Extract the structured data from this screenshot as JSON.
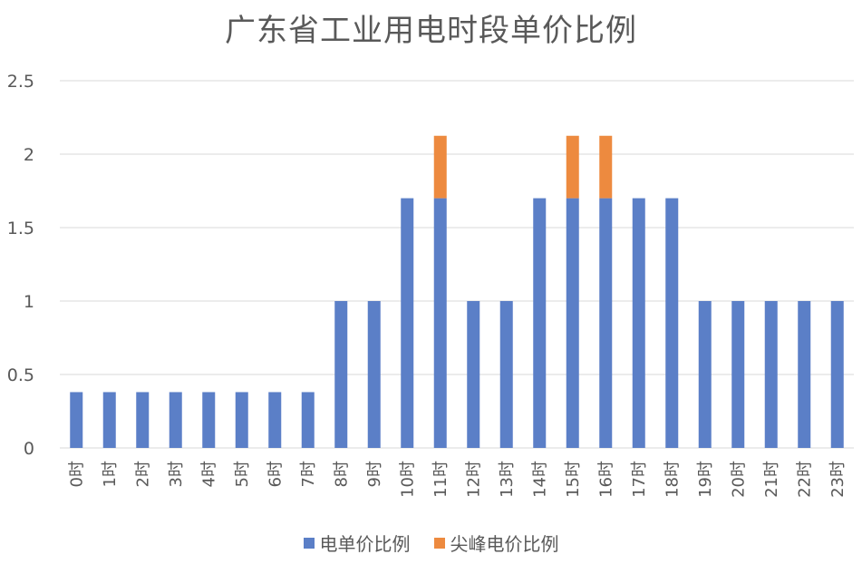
{
  "colors": {
    "series_0": "#5b7fc7",
    "series_1": "#ed8a3f",
    "grid": "#d9d9d9",
    "text": "#595959"
  },
  "chart_data": {
    "type": "bar",
    "stacked": true,
    "title": "广东省工业用电时段单价比例",
    "xlabel": "",
    "ylabel": "",
    "ylim": [
      0,
      2.5
    ],
    "yticks": [
      "0",
      "0.5",
      "1",
      "1.5",
      "2",
      "2.5"
    ],
    "grid": true,
    "legend_position": "bottom",
    "categories": [
      "0时",
      "1时",
      "2时",
      "3时",
      "4时",
      "5时",
      "6时",
      "7时",
      "8时",
      "9时",
      "10时",
      "11时",
      "12时",
      "13时",
      "14时",
      "15时",
      "16时",
      "17时",
      "18时",
      "19时",
      "20时",
      "21时",
      "22时",
      "23时"
    ],
    "series": [
      {
        "name": "电单价比例",
        "values": [
          0.38,
          0.38,
          0.38,
          0.38,
          0.38,
          0.38,
          0.38,
          0.38,
          1,
          1,
          1.7,
          1.7,
          1,
          1,
          1.7,
          1.7,
          1.7,
          1.7,
          1.7,
          1,
          1,
          1,
          1,
          1
        ]
      },
      {
        "name": "尖峰电价比例",
        "values": [
          0,
          0,
          0,
          0,
          0,
          0,
          0,
          0,
          0,
          0,
          0,
          0.425,
          0,
          0,
          0,
          0.425,
          0.425,
          0,
          0,
          0,
          0,
          0,
          0,
          0
        ]
      }
    ]
  }
}
